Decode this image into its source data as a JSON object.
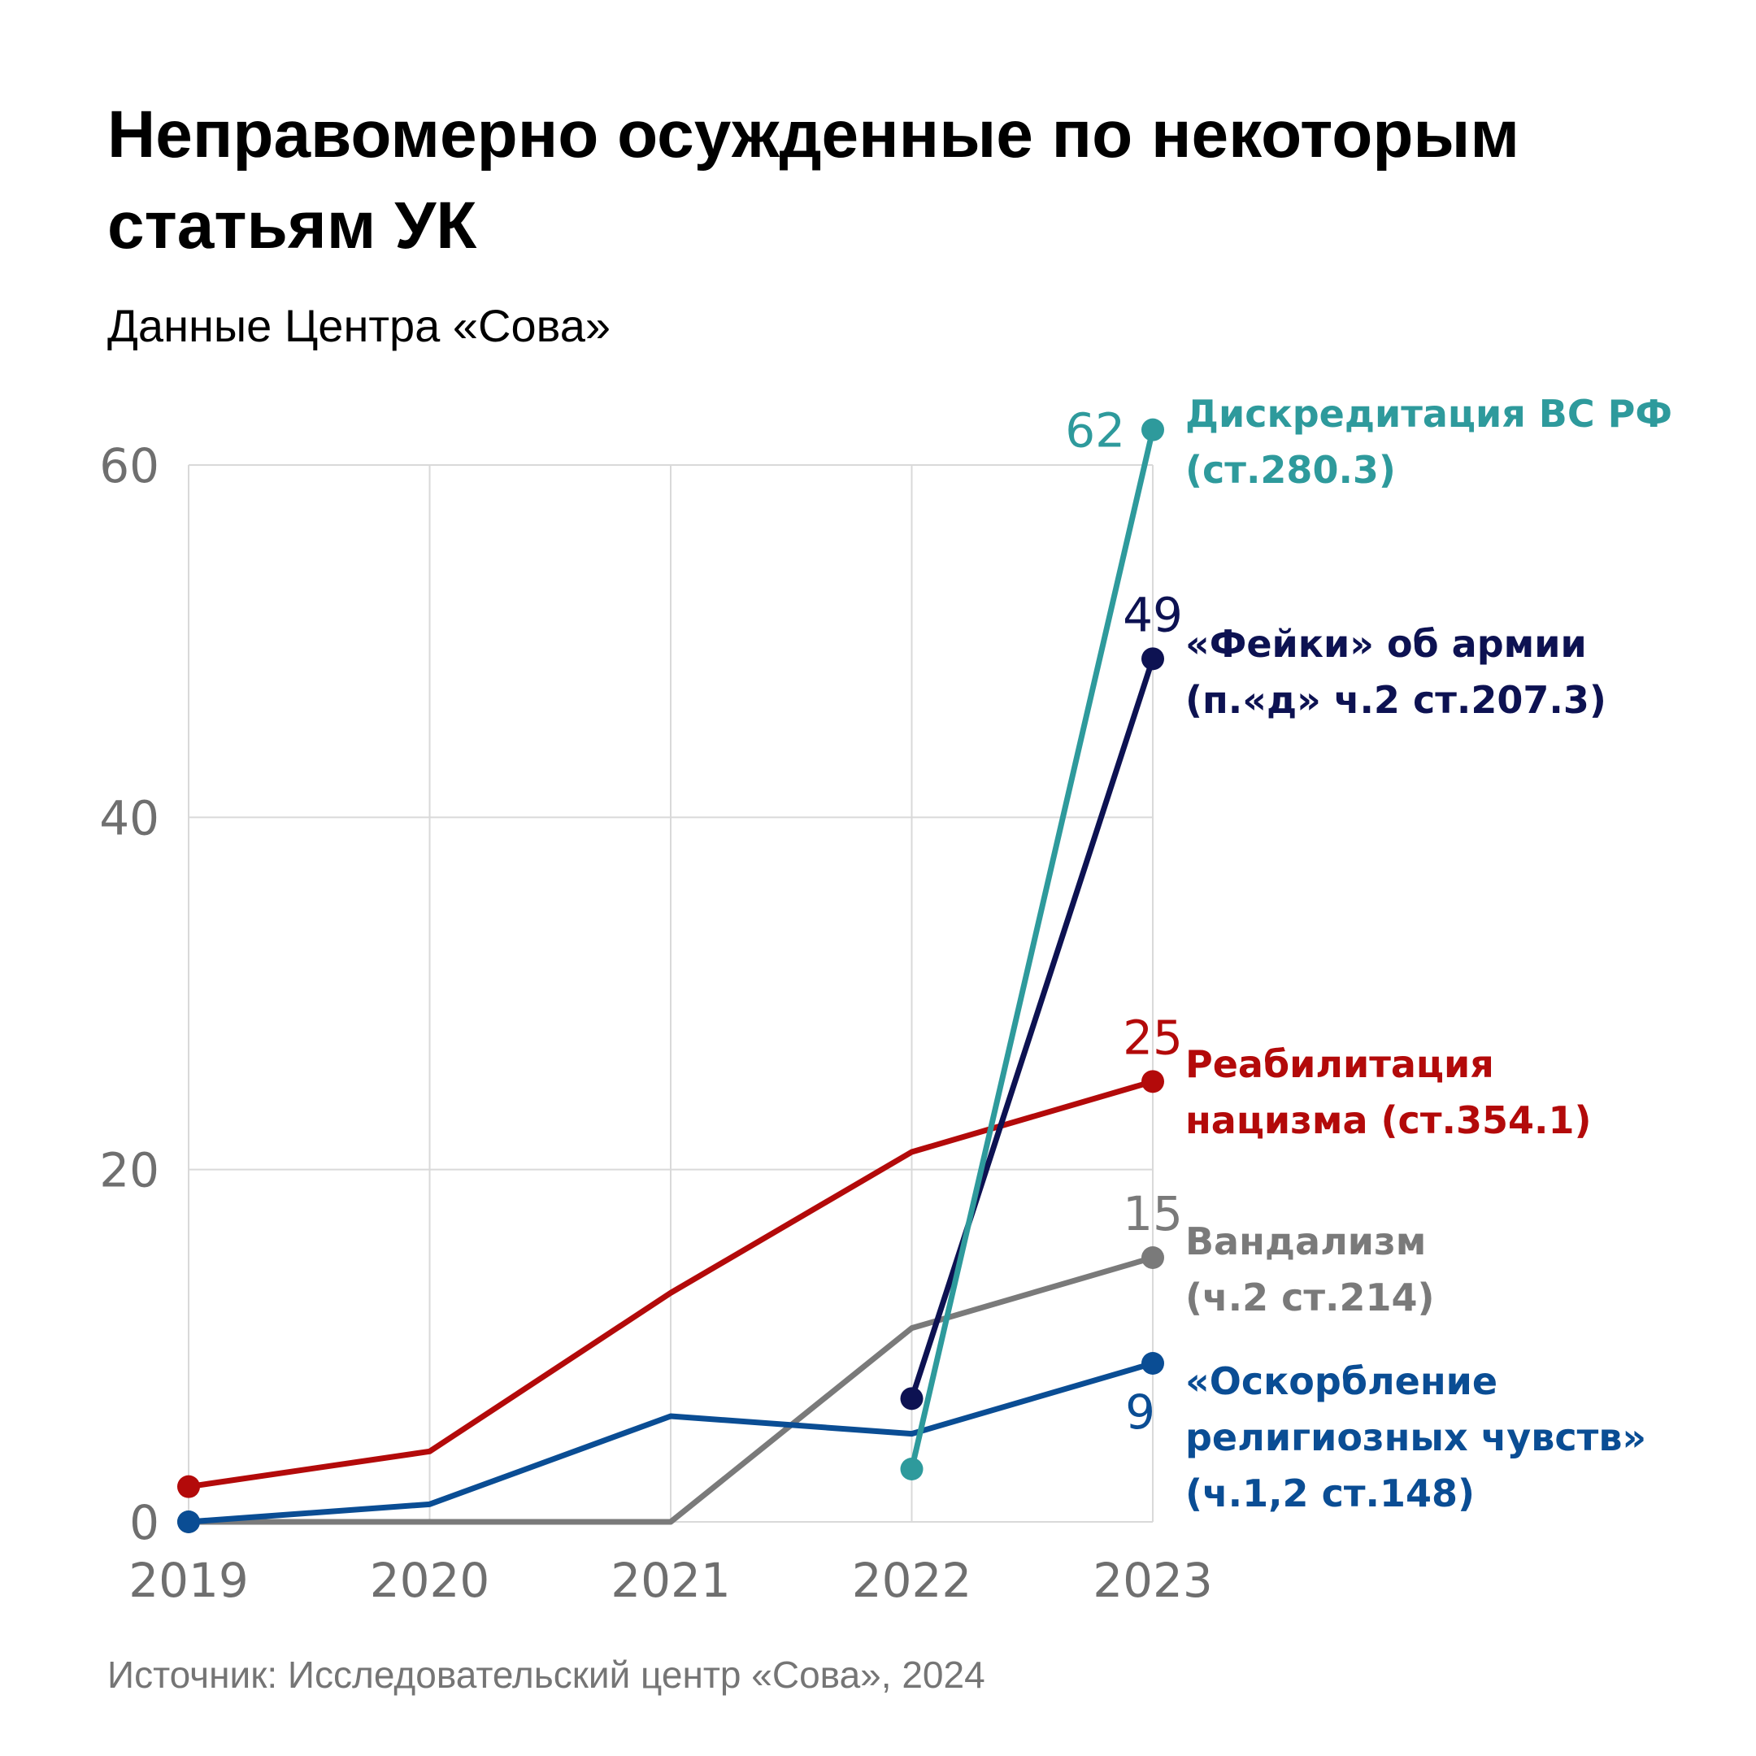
{
  "title": "Неправомерно осужденные по некоторым статьям УК",
  "subtitle": "Данные Центра «Сова»",
  "source": "Источник: Исследовательский центр «Сова», 2024",
  "chart_data": {
    "type": "line",
    "title": "Неправомерно осужденные по некоторым статьям УК",
    "subtitle": "Данные Центра «Сова»",
    "x": [
      2019,
      2020,
      2021,
      2022,
      2023
    ],
    "x_tick_labels": [
      "2019",
      "2020",
      "2021",
      "2022",
      "2023"
    ],
    "ylim": [
      0,
      60
    ],
    "y_ticks": [
      0,
      20,
      40,
      60
    ],
    "grid": true,
    "series": [
      {
        "id": "vandalism",
        "label_lines": [
          "Вандализм",
          "(ч.2 ст.214)"
        ],
        "color": "#7a7a7a",
        "values": [
          0,
          0,
          0,
          11,
          15
        ],
        "end_value_label": "15"
      },
      {
        "id": "religion",
        "label_lines": [
          "«Оскорбление",
          "религиозных чувств»",
          "(ч.1,2 ст.148)"
        ],
        "color": "#0a4d94",
        "values": [
          0,
          1,
          6,
          5,
          9
        ],
        "end_value_label": "9"
      },
      {
        "id": "nazism",
        "label_lines": [
          "Реабилитация",
          "нацизма (ст.354.1)"
        ],
        "color": "#b30a0a",
        "values": [
          2,
          4,
          13,
          21,
          25
        ],
        "end_value_label": "25"
      },
      {
        "id": "fakes",
        "label_lines": [
          "«Фейки» об армии",
          "(п.«д» ч.2 ст.207.3)"
        ],
        "color": "#0d1252",
        "values": [
          null,
          null,
          null,
          7,
          49
        ],
        "end_value_label": "49"
      },
      {
        "id": "discredit",
        "label_lines": [
          "Дискредитация ВС РФ",
          "(ст.280.3)"
        ],
        "color": "#2e9a9c",
        "values": [
          null,
          null,
          null,
          3,
          62
        ],
        "end_value_label": "62"
      }
    ]
  }
}
